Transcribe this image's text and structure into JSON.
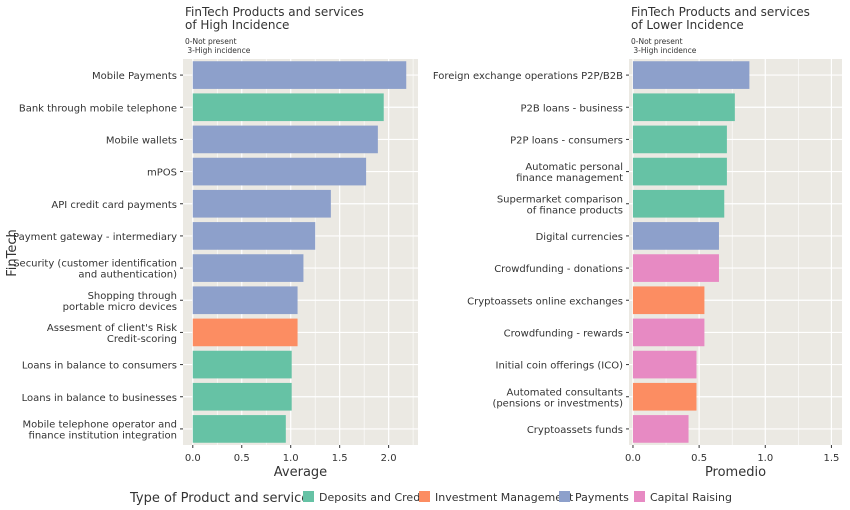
{
  "figure": {
    "y_axis_title": "FinTech",
    "legend_title": "Type of Product and service"
  },
  "legend": [
    {
      "label": "Deposits and Credit",
      "color": "#66c2a5"
    },
    {
      "label": "Investment Management",
      "color": "#fc8d62"
    },
    {
      "label": "Payments",
      "color": "#8da0cb"
    },
    {
      "label": "Capital Raising",
      "color": "#e78ac3"
    }
  ],
  "colors": {
    "Deposits and Credit": "#66c2a5",
    "Investment Management": "#fc8d62",
    "Payments": "#8da0cb",
    "Capital Raising": "#e78ac3",
    "panel_background": "#ebe9e3",
    "grid_line": "#ffffff"
  },
  "chart_data": [
    {
      "type": "bar",
      "orientation": "horizontal",
      "title": "FinTech Products and services\nof High Incidence",
      "subtitle": "0-Not present\n 3-High incidence",
      "xlabel": "Average",
      "ylabel": "FinTech",
      "xlim": [
        -0.1,
        2.3
      ],
      "xticks": [
        0.0,
        0.5,
        1.0,
        1.5,
        2.0
      ],
      "xtick_labels": [
        "0.0",
        "0.5",
        "1.0",
        "1.5",
        "2.0"
      ],
      "grid": true,
      "categories": [
        "Mobile Payments",
        "Bank through mobile telephone",
        "Mobile wallets",
        "mPOS",
        "API credit card payments",
        "Payment gateway - intermediary",
        "Security (customer identification\nand authentication)",
        "Shopping through\nportable micro devices",
        "Assesment of client's Risk\nCredit-scoring",
        "Loans in balance to consumers",
        "Loans in balance to businesses",
        "Mobile telephone operator and\nfinance institution integration"
      ],
      "values": [
        2.18,
        1.95,
        1.89,
        1.77,
        1.41,
        1.25,
        1.13,
        1.07,
        1.07,
        1.01,
        1.01,
        0.95
      ],
      "groups": [
        "Payments",
        "Deposits and Credit",
        "Payments",
        "Payments",
        "Payments",
        "Payments",
        "Payments",
        "Payments",
        "Investment Management",
        "Deposits and Credit",
        "Deposits and Credit",
        "Deposits and Credit"
      ]
    },
    {
      "type": "bar",
      "orientation": "horizontal",
      "title": "FinTech Products and services\nof Lower Incidence",
      "subtitle": "0-Not present\n 3-High incidence",
      "xlabel": "Promedio",
      "ylabel": "",
      "xlim": [
        -0.03,
        1.58
      ],
      "xticks": [
        0.0,
        0.5,
        1.0,
        1.5
      ],
      "xtick_labels": [
        "0.0",
        "0.5",
        "1.0",
        "1.5"
      ],
      "grid": true,
      "categories": [
        "Foreign exchange operations P2P/B2B",
        "P2B loans - business",
        "P2P loans - consumers",
        "Automatic personal\nfinance management",
        "Supermarket comparison\nof finance products",
        "Digital currencies",
        "Crowdfunding - donations",
        "Cryptoassets online exchanges",
        "Crowdfunding - rewards",
        "Initial coin offerings (ICO)",
        "Automated consultants\n(pensions or investments)",
        "Cryptoassets funds"
      ],
      "values": [
        0.88,
        0.77,
        0.71,
        0.71,
        0.69,
        0.65,
        0.65,
        0.54,
        0.54,
        0.48,
        0.48,
        0.42
      ],
      "groups": [
        "Payments",
        "Deposits and Credit",
        "Deposits and Credit",
        "Deposits and Credit",
        "Deposits and Credit",
        "Payments",
        "Capital Raising",
        "Investment Management",
        "Capital Raising",
        "Capital Raising",
        "Investment Management",
        "Capital Raising"
      ]
    }
  ]
}
